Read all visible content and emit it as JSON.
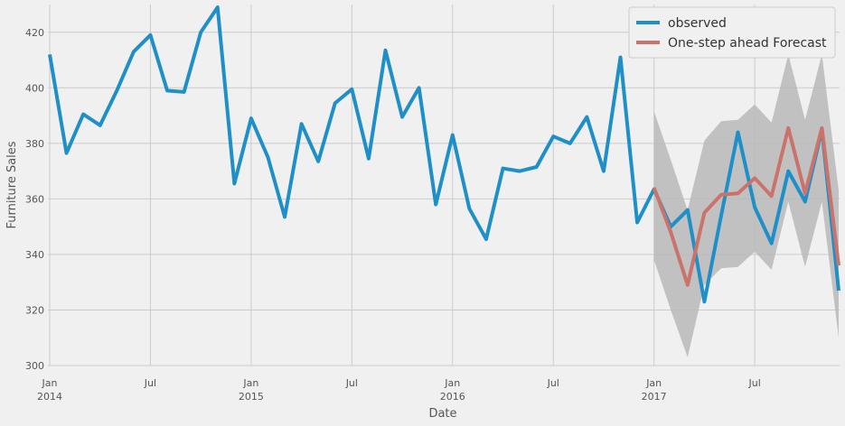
{
  "chart_data": {
    "type": "line",
    "title": "",
    "xlabel": "Date",
    "ylabel": "Furniture Sales",
    "ylim": [
      300,
      430
    ],
    "yticks": [
      300,
      320,
      340,
      360,
      380,
      400,
      420
    ],
    "xticks": [
      {
        "month": "2014-01",
        "label": "Jan",
        "sublabel": "2014"
      },
      {
        "month": "2014-07",
        "label": "Jul",
        "sublabel": ""
      },
      {
        "month": "2015-01",
        "label": "Jan",
        "sublabel": "2015"
      },
      {
        "month": "2015-07",
        "label": "Jul",
        "sublabel": ""
      },
      {
        "month": "2016-01",
        "label": "Jan",
        "sublabel": "2016"
      },
      {
        "month": "2016-07",
        "label": "Jul",
        "sublabel": ""
      },
      {
        "month": "2017-01",
        "label": "Jan",
        "sublabel": "2017"
      },
      {
        "month": "2017-07",
        "label": "Jul",
        "sublabel": ""
      }
    ],
    "xlim": [
      "2014-01",
      "2017-12"
    ],
    "grid": true,
    "legend_position": "top-right",
    "series": [
      {
        "name": "observed",
        "color": "#1f8fc8",
        "x": [
          "2014-01",
          "2014-02",
          "2014-03",
          "2014-04",
          "2014-05",
          "2014-06",
          "2014-07",
          "2014-08",
          "2014-09",
          "2014-10",
          "2014-11",
          "2014-12",
          "2015-01",
          "2015-02",
          "2015-03",
          "2015-04",
          "2015-05",
          "2015-06",
          "2015-07",
          "2015-08",
          "2015-09",
          "2015-10",
          "2015-11",
          "2015-12",
          "2016-01",
          "2016-02",
          "2016-03",
          "2016-04",
          "2016-05",
          "2016-06",
          "2016-07",
          "2016-08",
          "2016-09",
          "2016-10",
          "2016-11",
          "2016-12",
          "2017-01",
          "2017-02",
          "2017-03",
          "2017-04",
          "2017-05",
          "2017-06",
          "2017-07",
          "2017-08",
          "2017-09",
          "2017-10",
          "2017-11",
          "2017-12"
        ],
        "values": [
          412,
          376.5,
          390.5,
          386.5,
          399,
          413,
          419,
          399,
          398.5,
          420,
          429,
          365.5,
          389,
          375,
          353.5,
          387,
          373.5,
          394.5,
          399.5,
          374.5,
          413.5,
          389.5,
          400,
          358,
          383,
          356.5,
          345.5,
          371,
          370,
          371.5,
          382.5,
          380,
          389.5,
          370,
          411,
          351.5,
          363.5,
          350,
          356,
          323,
          354,
          384,
          357,
          344,
          370,
          359,
          385,
          327
        ]
      },
      {
        "name": "One-step ahead Forecast",
        "color": "#c9736b",
        "x": [
          "2017-01",
          "2017-02",
          "2017-03",
          "2017-04",
          "2017-05",
          "2017-06",
          "2017-07",
          "2017-08",
          "2017-09",
          "2017-10",
          "2017-11",
          "2017-12"
        ],
        "values": [
          364,
          348,
          329,
          355,
          361.5,
          362,
          367.5,
          361,
          385.5,
          362,
          385.5,
          336
        ],
        "ci_lower": [
          338,
          320,
          303,
          329,
          335,
          335.5,
          341,
          334.5,
          359,
          335.5,
          359,
          310
        ],
        "ci_upper": [
          391.5,
          374,
          356,
          381,
          388,
          388.5,
          394,
          387.5,
          412,
          388.5,
          412,
          363
        ]
      }
    ]
  }
}
